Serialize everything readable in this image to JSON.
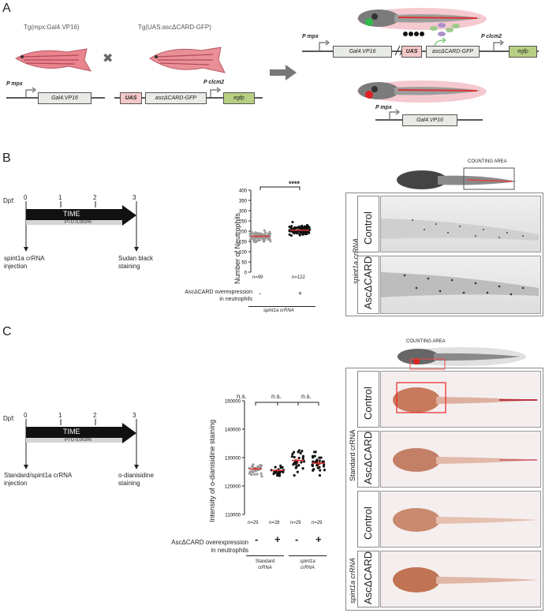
{
  "panels": {
    "a": "A",
    "b": "B",
    "c": "C"
  },
  "a": {
    "tg1": "Tg(mpx:Gal4.VP16)",
    "tg2": "Tg(UAS:ascΔCARD-GFP)",
    "cross": "✖",
    "p_mpx": "P mpx",
    "p_clcm2": "P clcm2",
    "gal4": "Gal4.VP16",
    "uas": "UAS",
    "asc_gfp": "ascΔCARD-GFP",
    "egfp": "egfp"
  },
  "b": {
    "dpf": "Dpf:",
    "ticks": [
      "0",
      "1",
      "2",
      "3"
    ],
    "time": "TIME",
    "ptu": "PTU 0,003%",
    "injection": "spint1a crRNA injection",
    "staining": "Sudan black staining",
    "ylabel": "Number of Neutrophils",
    "sig": "****",
    "n": [
      "n=99",
      "n=122"
    ],
    "groups": [
      "-",
      "+"
    ],
    "asc_label": "AscΔCARD overexpression in neutrophils",
    "crna": "spint1a crRNA",
    "counting": "COUNTING AREA",
    "row_labels": [
      "Control",
      "AscΔCARD"
    ],
    "side_label": "spint1a crRNA"
  },
  "c": {
    "dpf": "Dpf:",
    "ticks": [
      "0",
      "1",
      "2",
      "3"
    ],
    "time": "TIME",
    "ptu": "PTU 0,003%",
    "injection": "Standard/spint1a crRNA injection",
    "staining": "o-dianisidine staining",
    "ylabel": "Intensity of o-dianisidine staining",
    "ns": [
      "n.s.",
      "n.s.",
      "n.s."
    ],
    "n": [
      "n=29",
      "n=28",
      "n=29",
      "n=29"
    ],
    "groups": [
      "-",
      "+",
      "-",
      "+"
    ],
    "asc_label": "AscΔCARD overexpression in neutrophils",
    "crna": [
      "Standard crRNA",
      "spint1a crRNA"
    ],
    "counting": "COUNTING AREA",
    "row_labels": [
      "Control",
      "AscΔCARD",
      "Control",
      "AscΔCARD"
    ],
    "side_labels": [
      "Standard crRNA",
      "spint1a crRNA"
    ]
  },
  "chart_data": [
    {
      "type": "scatter",
      "ylabel": "Number of Neutrophils",
      "categories": [
        "-",
        "+"
      ],
      "ylim": [
        0,
        400
      ],
      "yticks": [
        0,
        50,
        100,
        150,
        200,
        250,
        300,
        350,
        400
      ],
      "series": [
        {
          "values_mean": 175,
          "sem": 5,
          "n": 99,
          "color": "#9a9a9a"
        },
        {
          "values_mean": 205,
          "sem": 5,
          "n": 122,
          "color": "#111111"
        }
      ]
    },
    {
      "type": "scatter",
      "ylabel": "Intensity of o-dianisidine staining",
      "categories": [
        "-",
        "+",
        "-",
        "+"
      ],
      "ylim": [
        110000,
        150000
      ],
      "yticks": [
        110000,
        120000,
        130000,
        140000,
        150000
      ],
      "series": [
        {
          "values_mean": 126000,
          "sem": 700,
          "n": 29,
          "color": "#9a9a9a"
        },
        {
          "values_mean": 125500,
          "sem": 700,
          "n": 28,
          "color": "#111111"
        },
        {
          "values_mean": 129000,
          "sem": 1200,
          "n": 29,
          "color": "#111111"
        },
        {
          "values_mean": 128000,
          "sem": 1200,
          "n": 29,
          "color": "#111111"
        }
      ]
    }
  ]
}
